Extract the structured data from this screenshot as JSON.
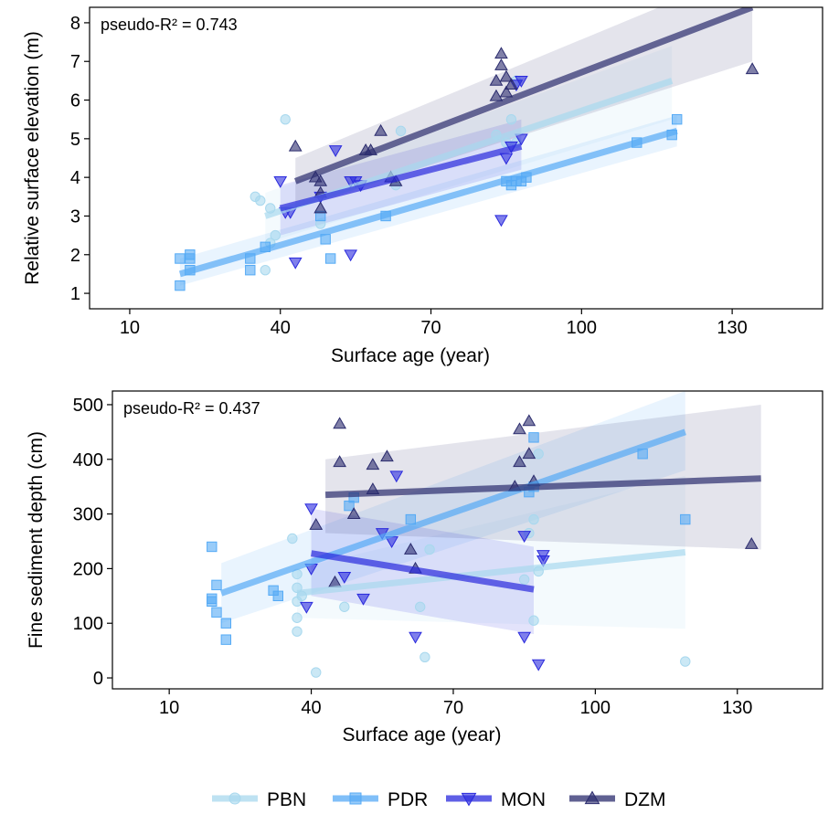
{
  "colors": {
    "PBN": "#a8d8ee",
    "PDR": "#55aaf5",
    "MON": "#2a2add",
    "DZM": "#2b2c6e"
  },
  "legend": {
    "items": [
      {
        "code": "PBN",
        "label": "PBN",
        "shape": "circle"
      },
      {
        "code": "PDR",
        "label": "PDR",
        "shape": "square"
      },
      {
        "code": "MON",
        "label": "MON",
        "shape": "triangle-down"
      },
      {
        "code": "DZM",
        "label": "DZM",
        "shape": "triangle-up"
      }
    ]
  },
  "chart_data": [
    {
      "type": "scatter",
      "xlabel": "Surface age (year)",
      "ylabel": "Relative surface elevation (m)",
      "annotation": "pseudo-R² = 0.743",
      "xlim": [
        2,
        148
      ],
      "ylim": [
        0.6,
        8.4
      ],
      "xticks": [
        10,
        40,
        70,
        100,
        130
      ],
      "yticks": [
        1,
        2,
        3,
        4,
        5,
        6,
        7,
        8
      ],
      "grid": false,
      "series": [
        {
          "name": "PBN",
          "points": [
            [
              35,
              3.5
            ],
            [
              36,
              3.4
            ],
            [
              37,
              1.6
            ],
            [
              38,
              2.3
            ],
            [
              38,
              3.2
            ],
            [
              39,
              2.5
            ],
            [
              41,
              5.5
            ],
            [
              48,
              2.8
            ],
            [
              63,
              3.8
            ],
            [
              64,
              5.2
            ],
            [
              83,
              5.1
            ],
            [
              85,
              4.9
            ],
            [
              86,
              5.5
            ],
            [
              87,
              4.9
            ],
            [
              87,
              6.5
            ]
          ],
          "fit": {
            "x": [
              37,
              118
            ],
            "y": [
              3.0,
              6.5
            ]
          },
          "ci": {
            "lo": [
              2.3,
              5.5
            ],
            "hi": [
              3.6,
              7.4
            ]
          }
        },
        {
          "name": "PDR",
          "points": [
            [
              20,
              1.9
            ],
            [
              20,
              1.2
            ],
            [
              22,
              2.0
            ],
            [
              22,
              1.9
            ],
            [
              22,
              1.6
            ],
            [
              34,
              1.6
            ],
            [
              34,
              1.9
            ],
            [
              37,
              2.2
            ],
            [
              48,
              3.0
            ],
            [
              49,
              2.4
            ],
            [
              50,
              1.9
            ],
            [
              61,
              3.0
            ],
            [
              85,
              3.9
            ],
            [
              86,
              3.8
            ],
            [
              87,
              3.9
            ],
            [
              88,
              3.9
            ],
            [
              89,
              4.0
            ],
            [
              111,
              4.9
            ],
            [
              118,
              5.1
            ],
            [
              119,
              5.5
            ]
          ],
          "fit": {
            "x": [
              20,
              119
            ],
            "y": [
              1.5,
              5.2
            ]
          },
          "ci": {
            "lo": [
              1.2,
              4.8
            ],
            "hi": [
              1.9,
              5.6
            ]
          }
        },
        {
          "name": "MON",
          "points": [
            [
              40,
              3.9
            ],
            [
              41,
              3.1
            ],
            [
              42,
              3.1
            ],
            [
              43,
              1.8
            ],
            [
              48,
              3.5
            ],
            [
              51,
              4.7
            ],
            [
              54,
              2.0
            ],
            [
              54,
              3.9
            ],
            [
              55,
              3.9
            ],
            [
              56,
              3.8
            ],
            [
              84,
              2.9
            ],
            [
              85,
              4.5
            ],
            [
              86,
              4.8
            ],
            [
              87,
              6.4
            ],
            [
              88,
              6.5
            ],
            [
              88,
              5.0
            ]
          ],
          "fit": {
            "x": [
              40,
              88
            ],
            "y": [
              3.2,
              4.8
            ]
          },
          "ci": {
            "lo": [
              2.5,
              4.2
            ],
            "hi": [
              3.8,
              5.5
            ]
          }
        },
        {
          "name": "DZM",
          "points": [
            [
              43,
              4.8
            ],
            [
              47,
              4.0
            ],
            [
              48,
              3.6
            ],
            [
              48,
              3.2
            ],
            [
              48,
              3.9
            ],
            [
              57,
              4.7
            ],
            [
              58,
              4.7
            ],
            [
              60,
              5.2
            ],
            [
              62,
              4.0
            ],
            [
              63,
              3.9
            ],
            [
              83,
              6.1
            ],
            [
              83,
              6.5
            ],
            [
              84,
              6.9
            ],
            [
              84,
              7.2
            ],
            [
              85,
              6.6
            ],
            [
              85,
              6.2
            ],
            [
              86,
              6.4
            ],
            [
              134,
              6.8
            ]
          ],
          "fit": {
            "x": [
              43,
              134
            ],
            "y": [
              3.9,
              8.4
            ]
          },
          "ci": {
            "lo": [
              3.2,
              7.0
            ],
            "hi": [
              4.5,
              9.4
            ]
          }
        }
      ]
    },
    {
      "type": "scatter",
      "xlabel": "Surface age (year)",
      "ylabel": "Fine sediment depth (cm)",
      "annotation": "pseudo-R² = 0.437",
      "xlim": [
        -2,
        148
      ],
      "ylim": [
        -20,
        525
      ],
      "xticks": [
        10,
        40,
        70,
        100,
        130
      ],
      "yticks": [
        0,
        100,
        200,
        300,
        400,
        500
      ],
      "grid": false,
      "series": [
        {
          "name": "PBN",
          "points": [
            [
              36,
              255
            ],
            [
              37,
              190
            ],
            [
              37,
              165
            ],
            [
              37,
              140
            ],
            [
              37,
              110
            ],
            [
              37,
              85
            ],
            [
              38,
              150
            ],
            [
              41,
              10
            ],
            [
              47,
              130
            ],
            [
              63,
              130
            ],
            [
              64,
              38
            ],
            [
              65,
              235
            ],
            [
              85,
              180
            ],
            [
              86,
              265
            ],
            [
              87,
              290
            ],
            [
              87,
              105
            ],
            [
              88,
              195
            ],
            [
              88,
              410
            ],
            [
              119,
              30
            ]
          ],
          "fit": {
            "x": [
              37,
              119
            ],
            "y": [
              155,
              230
            ]
          },
          "ci": {
            "lo": [
              110,
              90
            ],
            "hi": [
              200,
              370
            ]
          }
        },
        {
          "name": "PDR",
          "points": [
            [
              19,
              240
            ],
            [
              19,
              145
            ],
            [
              19,
              140
            ],
            [
              20,
              120
            ],
            [
              20,
              170
            ],
            [
              22,
              100
            ],
            [
              22,
              70
            ],
            [
              32,
              160
            ],
            [
              33,
              150
            ],
            [
              48,
              315
            ],
            [
              49,
              330
            ],
            [
              61,
              290
            ],
            [
              86,
              340
            ],
            [
              87,
              350
            ],
            [
              87,
              440
            ],
            [
              110,
              410
            ],
            [
              119,
              290
            ]
          ],
          "fit": {
            "x": [
              21,
              119
            ],
            "y": [
              155,
              450
            ]
          },
          "ci": {
            "lo": [
              100,
              380
            ],
            "hi": [
              210,
              525
            ]
          }
        },
        {
          "name": "MON",
          "points": [
            [
              39,
              130
            ],
            [
              40,
              310
            ],
            [
              40,
              200
            ],
            [
              47,
              185
            ],
            [
              51,
              145
            ],
            [
              55,
              265
            ],
            [
              57,
              250
            ],
            [
              58,
              370
            ],
            [
              62,
              75
            ],
            [
              85,
              75
            ],
            [
              85,
              260
            ],
            [
              88,
              25
            ],
            [
              89,
              225
            ],
            [
              89,
              215
            ]
          ],
          "fit": {
            "x": [
              40,
              87
            ],
            "y": [
              228,
              162
            ]
          },
          "ci": {
            "lo": [
              150,
              80
            ],
            "hi": [
              310,
              240
            ]
          }
        },
        {
          "name": "DZM",
          "points": [
            [
              41,
              280
            ],
            [
              45,
              175
            ],
            [
              46,
              465
            ],
            [
              46,
              395
            ],
            [
              49,
              300
            ],
            [
              53,
              345
            ],
            [
              53,
              390
            ],
            [
              56,
              405
            ],
            [
              61,
              235
            ],
            [
              62,
              200
            ],
            [
              83,
              350
            ],
            [
              84,
              455
            ],
            [
              84,
              395
            ],
            [
              86,
              410
            ],
            [
              86,
              470
            ],
            [
              87,
              360
            ],
            [
              133,
              245
            ]
          ],
          "fit": {
            "x": [
              43,
              135
            ],
            "y": [
              335,
              365
            ]
          },
          "ci": {
            "lo": [
              265,
              235
            ],
            "hi": [
              400,
              500
            ]
          }
        }
      ]
    }
  ]
}
